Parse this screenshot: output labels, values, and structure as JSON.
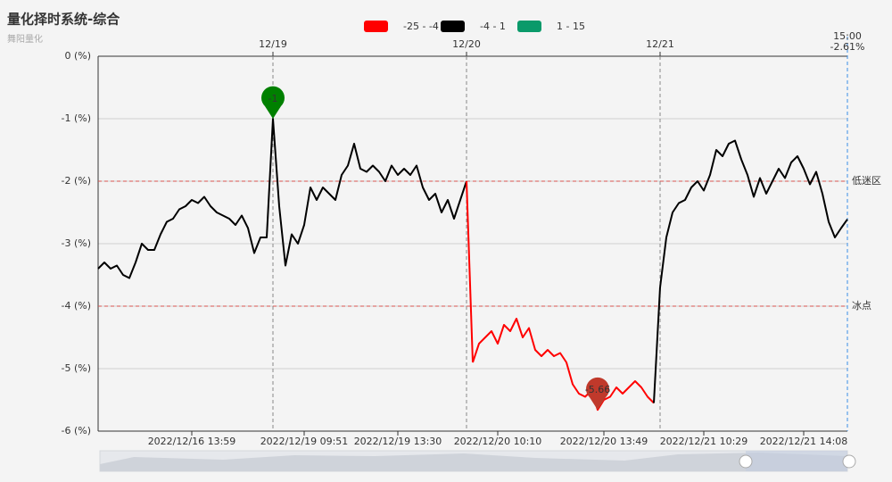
{
  "chart_data": {
    "type": "line",
    "title": "量化择时系统-综合",
    "subtitle": "舞阳量化",
    "categories": [
      null,
      null,
      null,
      null,
      null,
      null,
      null,
      null,
      null,
      null,
      null,
      null,
      null,
      null,
      null,
      "2022/12/16 13:59",
      null,
      null,
      null,
      null,
      null,
      null,
      null,
      null,
      null,
      null,
      null,
      null,
      null,
      null,
      null,
      null,
      null,
      "2022/12/19 09:51",
      null,
      null,
      null,
      null,
      null,
      null,
      null,
      null,
      null,
      null,
      null,
      null,
      null,
      null,
      "2022/12/19 13:30",
      null,
      null,
      null,
      null,
      null,
      null,
      null,
      null,
      null,
      null,
      null,
      null,
      null,
      null,
      null,
      "2022/12/20 10:10",
      null,
      null,
      null,
      null,
      null,
      null,
      null,
      null,
      null,
      null,
      null,
      null,
      null,
      null,
      null,
      null,
      "2022/12/20 13:49",
      null,
      null,
      null,
      null,
      null,
      null,
      null,
      null,
      null,
      null,
      null,
      null,
      null,
      null,
      null,
      "2022/12/21 10:29",
      null,
      null,
      null,
      null,
      null,
      null,
      null,
      null,
      null,
      null,
      null,
      null,
      null,
      null,
      null,
      "2022/12/21 14:08",
      null,
      null,
      null,
      null,
      null,
      null,
      null
    ],
    "values": [
      -3.4,
      -3.3,
      -3.4,
      -3.35,
      -3.5,
      -3.55,
      -3.3,
      -3.0,
      -3.1,
      -3.1,
      -2.85,
      -2.65,
      -2.6,
      -2.45,
      -2.4,
      -2.3,
      -2.35,
      -2.25,
      -2.4,
      -2.5,
      -2.55,
      -2.6,
      -2.7,
      -2.55,
      -2.75,
      -3.15,
      -2.9,
      -2.9,
      -1.0,
      -2.4,
      -3.35,
      -2.85,
      -3.0,
      -2.7,
      -2.1,
      -2.3,
      -2.1,
      -2.2,
      -2.3,
      -1.9,
      -1.75,
      -1.4,
      -1.8,
      -1.85,
      -1.75,
      -1.85,
      -2.0,
      -1.75,
      -1.9,
      -1.8,
      -1.9,
      -1.75,
      -2.1,
      -2.3,
      -2.2,
      -2.5,
      -2.3,
      -2.6,
      -2.3,
      -2.0,
      -4.9,
      -4.6,
      -4.5,
      -4.4,
      -4.6,
      -4.3,
      -4.4,
      -4.2,
      -4.5,
      -4.35,
      -4.7,
      -4.8,
      -4.7,
      -4.8,
      -4.75,
      -4.9,
      -5.25,
      -5.4,
      -5.45,
      -5.35,
      -5.66,
      -5.5,
      -5.45,
      -5.3,
      -5.4,
      -5.3,
      -5.2,
      -5.3,
      -5.45,
      -5.55,
      -3.7,
      -2.9,
      -2.5,
      -2.35,
      -2.3,
      -2.1,
      -2.0,
      -2.15,
      -1.9,
      -1.5,
      -1.6,
      -1.4,
      -1.35,
      -1.65,
      -1.9,
      -2.25,
      -1.95,
      -2.2,
      -2.0,
      -1.8,
      -1.95,
      -1.7,
      -1.6,
      -1.8,
      -2.05,
      -1.85,
      -2.2,
      -2.65,
      -2.9,
      -2.75,
      -2.61
    ],
    "ylim": [
      -6,
      0
    ],
    "yticks": [
      {
        "value": 0,
        "label": "0 (%)"
      },
      {
        "value": -1,
        "label": "-1 (%)"
      },
      {
        "value": -2,
        "label": "-2 (%)"
      },
      {
        "value": -3,
        "label": "-3 (%)"
      },
      {
        "value": -4,
        "label": "-4 (%)"
      },
      {
        "value": -5,
        "label": "-5 (%)"
      },
      {
        "value": -6,
        "label": "-6 (%)"
      }
    ],
    "grid": true,
    "visual_map": {
      "pieces": [
        {
          "label": "-25 - -4",
          "min": -25,
          "max": -4,
          "color": "#ff0000"
        },
        {
          "label": "-4 - 1",
          "min": -4,
          "max": 1,
          "color": "#000000"
        },
        {
          "label": "1 - 15",
          "min": 1,
          "max": 15,
          "color": "#0a9a6a"
        }
      ]
    },
    "day_marks": [
      {
        "label": "12/19",
        "at": 28
      },
      {
        "label": "12/20",
        "at": 59
      },
      {
        "label": "12/21",
        "at": 90
      }
    ],
    "threshold_lines": [
      {
        "value": -2,
        "label": "低迷区"
      },
      {
        "value": -4,
        "label": "冰点"
      }
    ],
    "markers": [
      {
        "value": -1,
        "index": 28,
        "color": "#008000"
      },
      {
        "value": -5.66,
        "index": 80,
        "color": "#c0392b"
      }
    ],
    "cursor": {
      "time": "15:00",
      "value_label": "-2.61%"
    }
  }
}
